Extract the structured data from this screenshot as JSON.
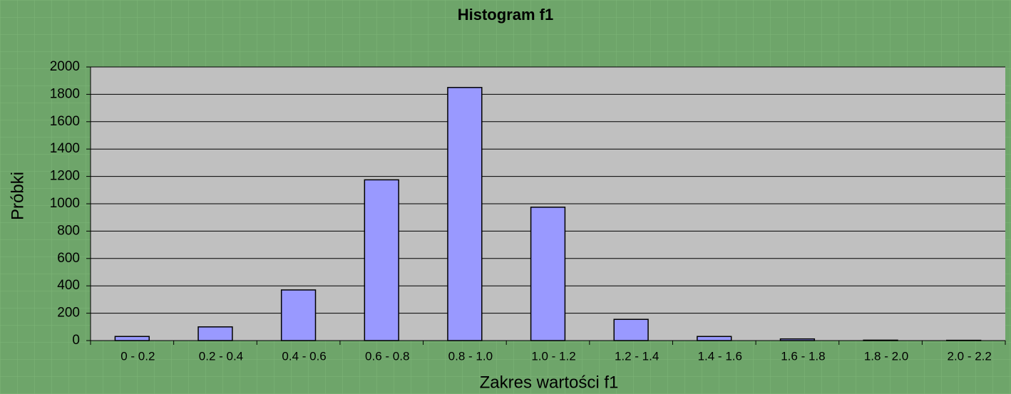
{
  "chart_data": {
    "type": "bar",
    "title": "Histogram f1",
    "x_label": "Zakres wartości f1",
    "y_label": "Próbki",
    "categories": [
      "0 - 0.2",
      "0.2 - 0.4",
      "0.4 - 0.6",
      "0.6 - 0.8",
      "0.8 - 1.0",
      "1.0 - 1.2",
      "1.2 - 1.4",
      "1.4 - 1.6",
      "1.6 - 1.8",
      "1.8 - 2.0",
      "2.0 - 2.2"
    ],
    "values": [
      30,
      100,
      370,
      1175,
      1850,
      975,
      155,
      30,
      12,
      3,
      2
    ],
    "color": "#9999ff",
    "ylim": [
      0,
      2000
    ],
    "yticks": [
      0,
      200,
      400,
      600,
      800,
      1000,
      1200,
      1400,
      1600,
      1800,
      2000
    ],
    "grid": true
  }
}
